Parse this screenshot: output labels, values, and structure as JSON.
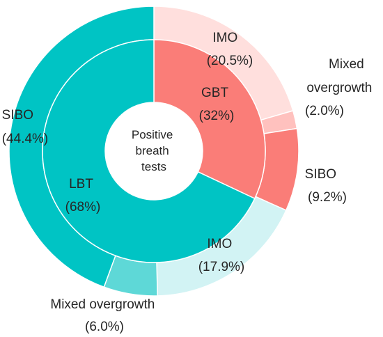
{
  "chart_data": {
    "type": "sunburst-donut",
    "center_label_lines": [
      "Positive",
      "breath",
      "tests"
    ],
    "inner_ring": [
      {
        "label": "GBT",
        "percent_text": "(32%)",
        "value": 32,
        "color": "#FA7D78"
      },
      {
        "label": "LBT",
        "percent_text": "(68%)",
        "value": 68,
        "color": "#00C4C4"
      }
    ],
    "outer_ring": [
      {
        "label": "IMO",
        "percent_text": "(20.5%)",
        "value": 20.5,
        "parent": "GBT",
        "color": "#FFDFDD"
      },
      {
        "label": "Mixed overgrowth",
        "percent_text": "(2.0%)",
        "value": 2.0,
        "parent": "GBT",
        "color": "#FFC1BE"
      },
      {
        "label": "SIBO",
        "percent_text": "(9.2%)",
        "value": 9.2,
        "parent": "GBT",
        "color": "#FA7D78"
      },
      {
        "label": "IMO",
        "percent_text": "(17.9%)",
        "value": 17.9,
        "parent": "LBT",
        "color": "#D2F3F4"
      },
      {
        "label": "Mixed overgrowth",
        "percent_text": "(6.0%)",
        "value": 6.0,
        "parent": "LBT",
        "color": "#5ED8D7"
      },
      {
        "label": "SIBO",
        "percent_text": "(44.4%)",
        "value": 44.4,
        "parent": "LBT",
        "color": "#00C4C4"
      }
    ]
  }
}
